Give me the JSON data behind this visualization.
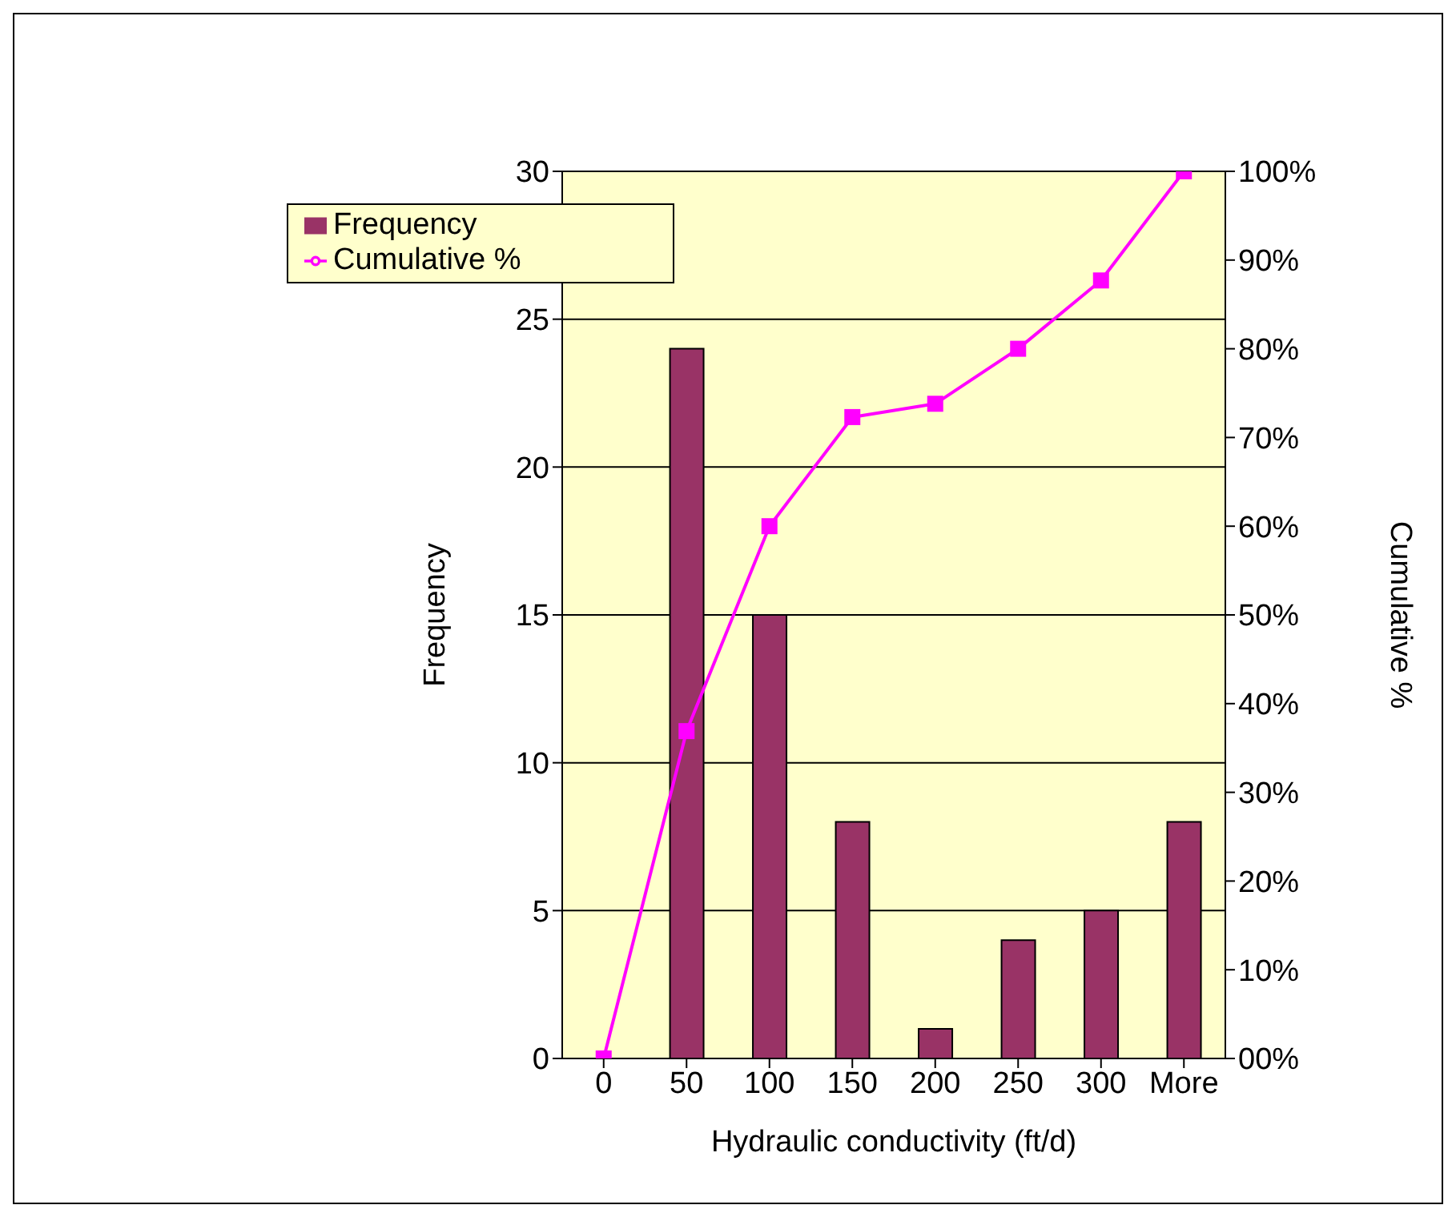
{
  "chart_data": {
    "type": "bar",
    "xlabel": "Hydraulic conductivity (ft/d)",
    "ylabel": "Frequency",
    "y2label": "Cumulative %",
    "categories": [
      "0",
      "50",
      "100",
      "150",
      "200",
      "250",
      "300",
      "More"
    ],
    "series": [
      {
        "name": "Frequency",
        "color": "#993366",
        "values": [
          0,
          24,
          15,
          8,
          1,
          4,
          5,
          8
        ]
      },
      {
        "name": "Cumulative %",
        "type": "line",
        "axis": "y2",
        "color": "#ff00ff",
        "marker": "square",
        "values": [
          0,
          36.9,
          60,
          72.3,
          73.8,
          80,
          87.7,
          100
        ]
      }
    ],
    "ylim": [
      0,
      30
    ],
    "yticks": [
      0,
      5,
      10,
      15,
      20,
      25,
      30
    ],
    "y2lim": [
      0,
      100
    ],
    "y2ticks": [
      {
        "value": 0,
        "label": "00%"
      },
      {
        "value": 10,
        "label": "10%"
      },
      {
        "value": 20,
        "label": "20%"
      },
      {
        "value": 30,
        "label": "30%"
      },
      {
        "value": 40,
        "label": "40%"
      },
      {
        "value": 50,
        "label": "50%"
      },
      {
        "value": 60,
        "label": "60%"
      },
      {
        "value": 70,
        "label": "70%"
      },
      {
        "value": 80,
        "label": "80%"
      },
      {
        "value": 90,
        "label": "90%"
      },
      {
        "value": 100,
        "label": "100%"
      }
    ],
    "grid": "y",
    "legend": "top left"
  }
}
